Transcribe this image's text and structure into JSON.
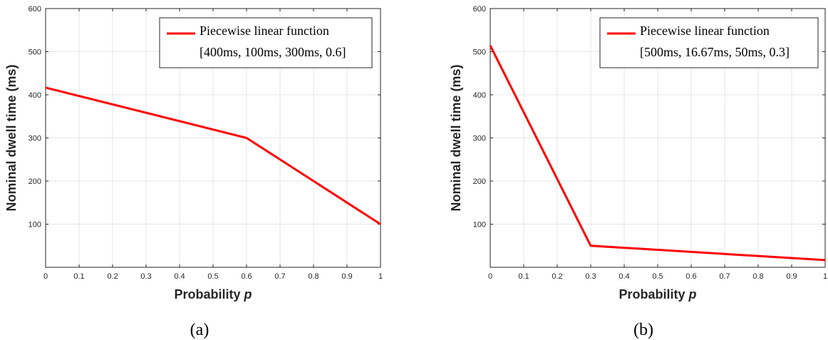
{
  "chart_data": [
    {
      "type": "line",
      "caption": "(a)",
      "xlabel": "Probability",
      "xlabel_var": "p",
      "ylabel": "Nominal dwell time (ms)",
      "xlim": [
        0,
        1
      ],
      "ylim": [
        0,
        600
      ],
      "xticks": [
        "0",
        "0.1",
        "0.2",
        "0.3",
        "0.4",
        "0.5",
        "0.6",
        "0.7",
        "0.8",
        "0.9",
        "1"
      ],
      "yticks": [
        "100",
        "200",
        "300",
        "400",
        "500",
        "600"
      ],
      "ytick_values": [
        100,
        200,
        300,
        400,
        500,
        600
      ],
      "grid": true,
      "legend_position": "top-right",
      "color": "#ff0000",
      "series": [
        {
          "legend_lines": [
            "Piecewise linear function",
            "[400ms, 100ms, 300ms, 0.6]"
          ],
          "x": [
            0,
            0.6,
            1
          ],
          "y": [
            416.67,
            300,
            100
          ]
        }
      ]
    },
    {
      "type": "line",
      "caption": "(b)",
      "xlabel": "Probability",
      "xlabel_var": "p",
      "ylabel": "Nominal dwell time (ms)",
      "xlim": [
        0,
        1
      ],
      "ylim": [
        0,
        600
      ],
      "xticks": [
        "0",
        "0.1",
        "0.2",
        "0.3",
        "0.4",
        "0.5",
        "0.6",
        "0.7",
        "0.8",
        "0.9",
        "1"
      ],
      "yticks": [
        "100",
        "200",
        "300",
        "400",
        "500",
        "600"
      ],
      "ytick_values": [
        100,
        200,
        300,
        400,
        500,
        600
      ],
      "grid": true,
      "legend_position": "top-right",
      "color": "#ff0000",
      "series": [
        {
          "legend_lines": [
            "Piecewise linear function",
            "[500ms, 16.67ms, 50ms, 0.3]"
          ],
          "x": [
            0,
            0.3,
            1
          ],
          "y": [
            514.3,
            50,
            16.67
          ]
        }
      ]
    }
  ]
}
